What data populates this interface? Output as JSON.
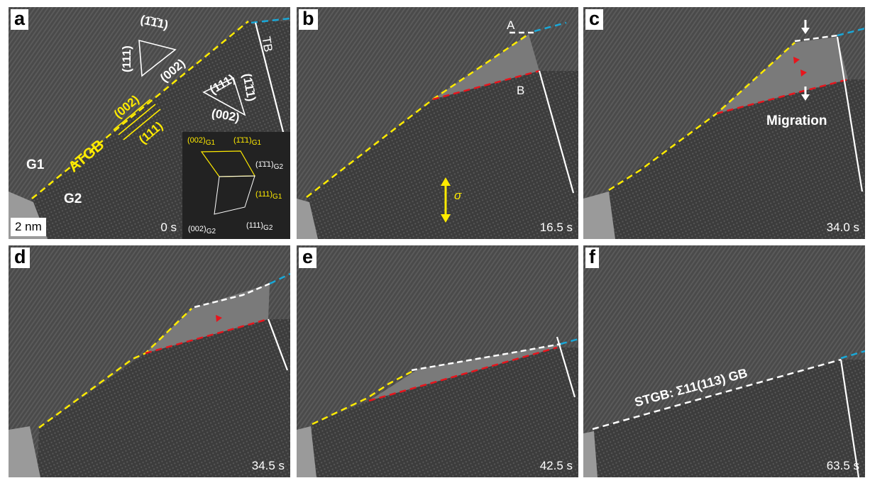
{
  "panels": [
    {
      "label": "a",
      "time": "0 s",
      "g1": "G1",
      "g2": "G2",
      "atgb": "ATGB",
      "tb": "TB",
      "scale": "2 nm",
      "planes_g1": {
        "a": "(1̄1̄1)",
        "b": "(111)",
        "c": "(002)"
      },
      "planes_g2": {
        "a": "(111)",
        "b": "(1̄1̄1)",
        "c": "(002)"
      },
      "boundary_planes": {
        "top": "(002)",
        "bottom": "(111)"
      },
      "fft": {
        "l1": "(002)",
        "l1s": "G1",
        "l2": "(1̄1̄1)",
        "l2s": "G1",
        "l3": "(1̄1̄1)",
        "l3s": "G2",
        "l4": "(111)",
        "l4s": "G1",
        "l5": "(002)",
        "l5s": "G2",
        "l6": "(111)",
        "l6s": "G2"
      }
    },
    {
      "label": "b",
      "time": "16.5 s",
      "pointA": "A",
      "pointB": "B",
      "stress": "σ"
    },
    {
      "label": "c",
      "time": "34.0 s",
      "migration": "Migration"
    },
    {
      "label": "d",
      "time": "34.5 s"
    },
    {
      "label": "e",
      "time": "42.5 s"
    },
    {
      "label": "f",
      "time": "63.5 s",
      "stgb": "STGB: Σ11(113) GB"
    }
  ],
  "colors": {
    "atgb": "#ffeb00",
    "migrating_boundary": "#e8141c",
    "stgb": "#ffffff",
    "twin_extension": "#19a8d8",
    "tb": "#ffffff"
  }
}
